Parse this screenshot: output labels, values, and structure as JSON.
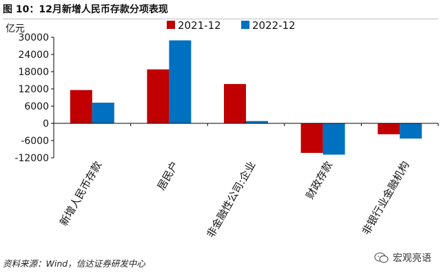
{
  "figure_title": "图 10：12月新增人民币存款分项表现",
  "source": "资料来源：Wind，信达证券研发中心",
  "watermark": "宏观亮语",
  "colors": {
    "series_2021": "#c00000",
    "series_2022": "#0070c0"
  },
  "chart_data": {
    "type": "bar",
    "ylabel": "亿元",
    "ylim": [
      -12000,
      30000
    ],
    "yticks": [
      30000,
      24000,
      18000,
      12000,
      6000,
      0,
      -6000,
      -12000
    ],
    "grid": false,
    "legend_position": "top",
    "categories": [
      "新增人民币存款",
      "居民户",
      "非金融性公司:企业",
      "财政存款",
      "非银行业金融机构"
    ],
    "series": [
      {
        "name": "2021-12",
        "color": "#c00000",
        "values": [
          11600,
          18800,
          13700,
          -10300,
          -3800
        ]
      },
      {
        "name": "2022-12",
        "color": "#0070c0",
        "values": [
          7200,
          28900,
          800,
          -10900,
          -5300
        ]
      }
    ]
  }
}
